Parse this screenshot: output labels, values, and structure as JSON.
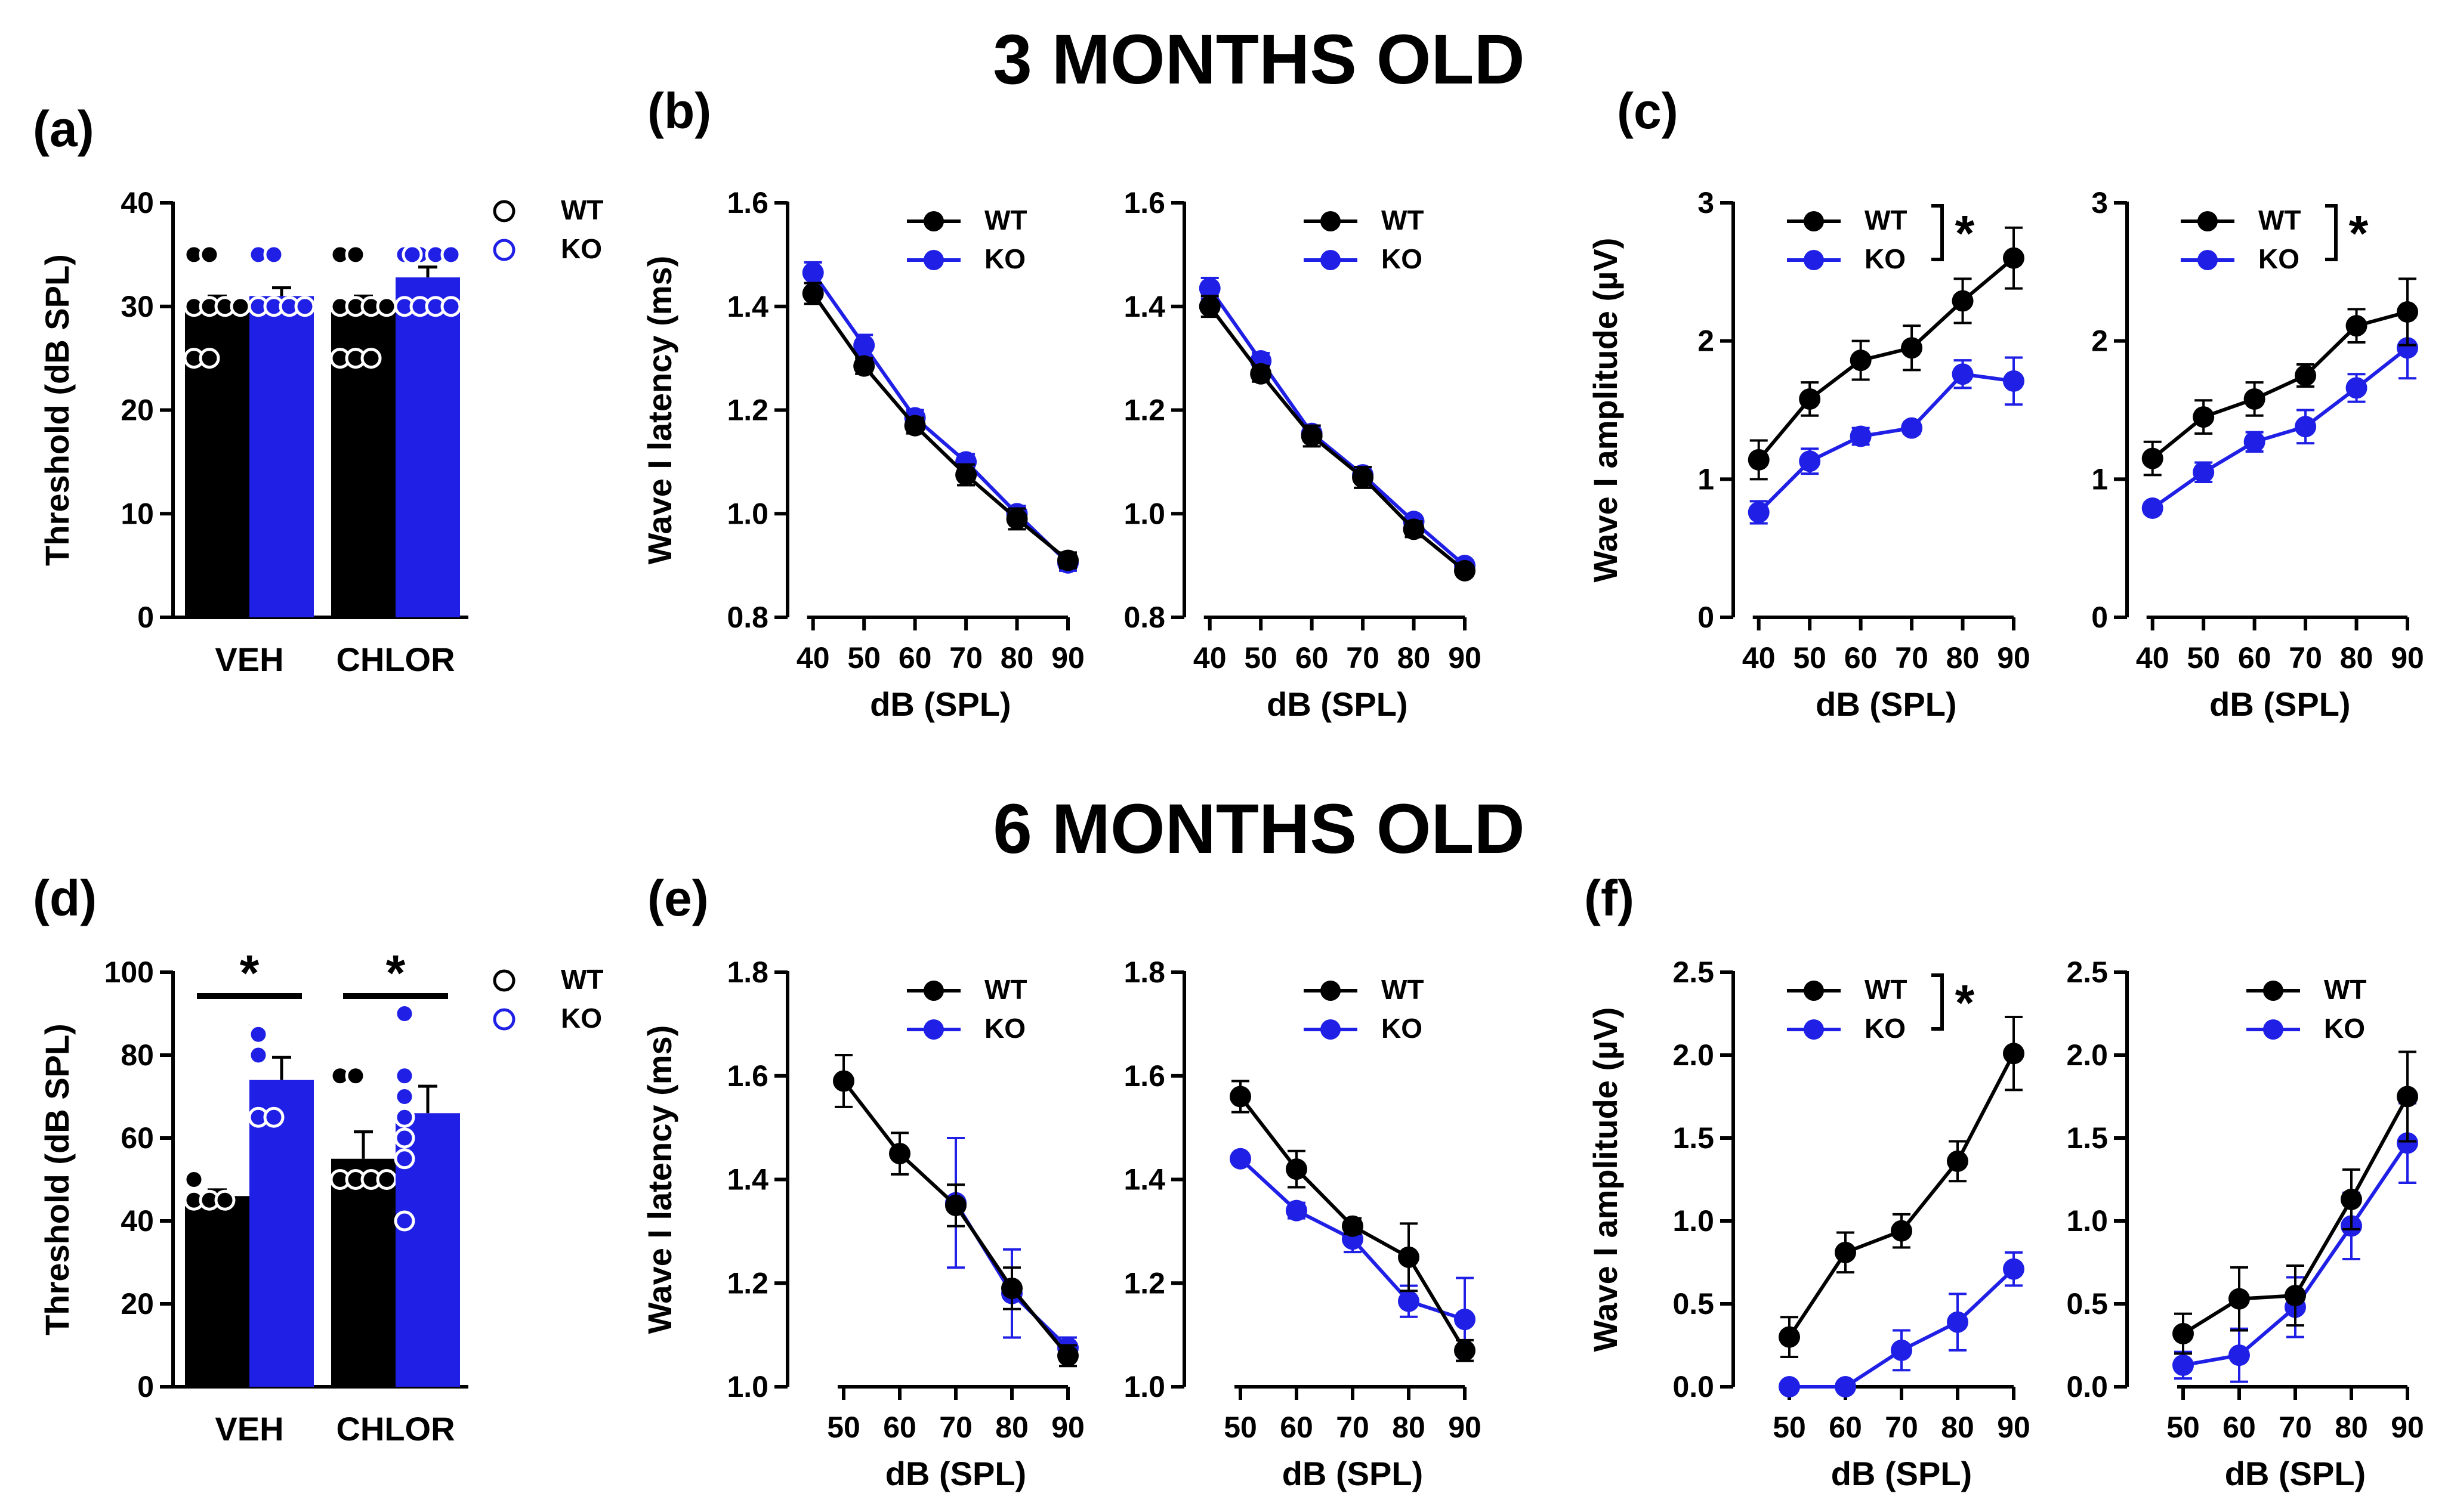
{
  "figure": {
    "titles": [
      "3 MONTHS OLD",
      "6 MONTHS OLD"
    ],
    "legend": {
      "wt": "WT",
      "ko": "KO"
    },
    "colors": {
      "wt": "#000000",
      "ko": "#1f1fe6",
      "axis": "#000000"
    },
    "significance_mark": "*"
  },
  "chart_data": [
    {
      "id": "a",
      "panel_label": "(a)",
      "type": "bar",
      "title": "3 MONTHS OLD",
      "ylabel": "Threshold (dB SPL)",
      "xlabel": "",
      "ylim": [
        0,
        40
      ],
      "yticks": [
        0,
        10,
        20,
        30,
        40
      ],
      "categories": [
        "VEH",
        "CHLOR"
      ],
      "series": [
        {
          "name": "WT",
          "values": [
            30.0,
            30.0
          ],
          "errors": [
            1.0,
            1.0
          ],
          "points": [
            [
              35,
              35,
              30,
              30,
              30,
              30,
              25,
              25
            ],
            [
              35,
              35,
              30,
              30,
              30,
              30,
              25,
              25,
              25
            ]
          ]
        },
        {
          "name": "KO",
          "values": [
            31.0,
            32.8
          ],
          "errors": [
            0.8,
            1.0
          ],
          "points": [
            [
              35,
              35,
              30,
              30,
              30,
              30
            ],
            [
              35,
              35,
              35,
              35,
              35,
              30,
              30,
              30,
              30
            ]
          ]
        }
      ],
      "significance": [],
      "legend": [
        "WT",
        "KO"
      ]
    },
    {
      "id": "b1",
      "panel_label": "(b)",
      "type": "line",
      "ylabel": "Wave I latency (ms)",
      "xlabel": "dB (SPL)",
      "ylim": [
        0.8,
        1.6
      ],
      "yticks": [
        0.8,
        1.0,
        1.2,
        1.4,
        1.6
      ],
      "ytick_labels": [
        "0.8",
        "1.0",
        "1.2",
        "1.4",
        "1.6"
      ],
      "xlim": [
        35,
        90
      ],
      "x": [
        40,
        50,
        60,
        70,
        80,
        90
      ],
      "series": [
        {
          "name": "WT",
          "values": [
            1.425,
            1.285,
            1.17,
            1.075,
            0.99,
            0.91
          ],
          "errors": [
            0.02,
            0.015,
            0.015,
            0.02,
            0.02,
            0.015
          ]
        },
        {
          "name": "KO",
          "values": [
            1.465,
            1.325,
            1.185,
            1.1,
            1.0,
            0.905
          ],
          "errors": [
            0.02,
            0.02,
            0.015,
            0.015,
            0.015,
            0.015
          ]
        }
      ],
      "legend": [
        "WT",
        "KO"
      ]
    },
    {
      "id": "b2",
      "panel_label": "",
      "type": "line",
      "ylabel": "",
      "xlabel": "dB (SPL)",
      "ylim": [
        0.8,
        1.6
      ],
      "yticks": [
        0.8,
        1.0,
        1.2,
        1.4,
        1.6
      ],
      "ytick_labels": [
        "0.8",
        "1.0",
        "1.2",
        "1.4",
        "1.6"
      ],
      "xlim": [
        35,
        90
      ],
      "x": [
        40,
        50,
        60,
        70,
        80,
        90
      ],
      "series": [
        {
          "name": "WT",
          "values": [
            1.4,
            1.27,
            1.15,
            1.07,
            0.97,
            0.89
          ],
          "errors": [
            0.02,
            0.015,
            0.02,
            0.02,
            0.015,
            0.01
          ]
        },
        {
          "name": "KO",
          "values": [
            1.435,
            1.295,
            1.155,
            1.075,
            0.985,
            0.9
          ],
          "errors": [
            0.02,
            0.015,
            0.015,
            0.015,
            0.01,
            0.01
          ]
        }
      ],
      "legend": [
        "WT",
        "KO"
      ]
    },
    {
      "id": "c1",
      "panel_label": "(c)",
      "type": "line",
      "ylabel": "Wave I amplitude (µV)",
      "xlabel": "dB (SPL)",
      "ylim": [
        0,
        3
      ],
      "yticks": [
        0,
        1,
        2,
        3
      ],
      "ytick_labels": [
        "0",
        "1",
        "2",
        "3"
      ],
      "xlim": [
        35,
        90
      ],
      "x": [
        40,
        50,
        60,
        70,
        80,
        90
      ],
      "series": [
        {
          "name": "WT",
          "values": [
            1.14,
            1.58,
            1.86,
            1.95,
            2.29,
            2.6
          ],
          "errors": [
            0.14,
            0.12,
            0.14,
            0.16,
            0.16,
            0.22
          ]
        },
        {
          "name": "KO",
          "values": [
            0.76,
            1.13,
            1.31,
            1.37,
            1.76,
            1.71
          ],
          "errors": [
            0.08,
            0.09,
            0.06,
            0.04,
            0.1,
            0.17
          ]
        }
      ],
      "significance": "*",
      "legend": [
        "WT",
        "KO"
      ]
    },
    {
      "id": "c2",
      "panel_label": "",
      "type": "line",
      "ylabel": "",
      "xlabel": "dB (SPL)",
      "ylim": [
        0,
        3
      ],
      "yticks": [
        0,
        1,
        2,
        3
      ],
      "ytick_labels": [
        "0",
        "1",
        "2",
        "3"
      ],
      "xlim": [
        35,
        90
      ],
      "x": [
        40,
        50,
        60,
        70,
        80,
        90
      ],
      "series": [
        {
          "name": "WT",
          "values": [
            1.15,
            1.45,
            1.58,
            1.75,
            2.11,
            2.21
          ],
          "errors": [
            0.12,
            0.12,
            0.12,
            0.08,
            0.12,
            0.24
          ]
        },
        {
          "name": "KO",
          "values": [
            0.79,
            1.05,
            1.27,
            1.38,
            1.66,
            1.95
          ],
          "errors": [
            0.04,
            0.07,
            0.07,
            0.12,
            0.1,
            0.22
          ]
        }
      ],
      "significance": "*",
      "legend": [
        "WT",
        "KO"
      ]
    },
    {
      "id": "d",
      "panel_label": "(d)",
      "type": "bar",
      "title": "6 MONTHS OLD",
      "ylabel": "Threshold (dB SPL)",
      "xlabel": "",
      "ylim": [
        0,
        100
      ],
      "yticks": [
        0,
        20,
        40,
        60,
        80,
        100
      ],
      "categories": [
        "VEH",
        "CHLOR"
      ],
      "series": [
        {
          "name": "WT",
          "values": [
            46,
            55
          ],
          "errors": [
            1.5,
            6.5
          ],
          "points": [
            [
              50,
              45,
              45,
              45
            ],
            [
              75,
              75,
              50,
              50,
              50,
              50
            ]
          ]
        },
        {
          "name": "KO",
          "values": [
            74,
            66
          ],
          "errors": [
            5.5,
            6.5
          ],
          "points": [
            [
              85,
              80,
              65,
              65
            ],
            [
              90,
              75,
              70,
              65,
              60,
              55,
              40
            ]
          ]
        }
      ],
      "significance": [
        "*",
        "*"
      ],
      "legend": [
        "WT",
        "KO"
      ]
    },
    {
      "id": "e1",
      "panel_label": "(e)",
      "type": "line",
      "ylabel": "Wave I latency (ms)",
      "xlabel": "dB (SPL)",
      "ylim": [
        1.0,
        1.8
      ],
      "yticks": [
        1.0,
        1.2,
        1.4,
        1.6,
        1.8
      ],
      "ytick_labels": [
        "1.0",
        "1.2",
        "1.4",
        "1.6",
        "1.8"
      ],
      "xlim": [
        40,
        90
      ],
      "x": [
        50,
        60,
        70,
        80,
        90
      ],
      "series": [
        {
          "name": "WT",
          "values": [
            1.59,
            1.45,
            1.35,
            1.19,
            1.06
          ],
          "errors": [
            0.05,
            0.04,
            0.04,
            0.04,
            0.02
          ]
        },
        {
          "name": "KO",
          "values": [
            null,
            null,
            1.355,
            1.18,
            1.075
          ],
          "errors": [
            0,
            0,
            0.125,
            0.085,
            0.02
          ]
        }
      ],
      "legend": [
        "WT",
        "KO"
      ]
    },
    {
      "id": "e2",
      "panel_label": "",
      "type": "line",
      "ylabel": "",
      "xlabel": "dB (SPL)",
      "ylim": [
        1.0,
        1.8
      ],
      "yticks": [
        1.0,
        1.2,
        1.4,
        1.6,
        1.8
      ],
      "ytick_labels": [
        "1.0",
        "1.2",
        "1.4",
        "1.6",
        "1.8"
      ],
      "xlim": [
        40,
        90
      ],
      "x": [
        50,
        60,
        70,
        80,
        90
      ],
      "series": [
        {
          "name": "WT",
          "values": [
            1.56,
            1.42,
            1.31,
            1.25,
            1.07
          ],
          "errors": [
            0.03,
            0.035,
            0.015,
            0.065,
            0.02
          ]
        },
        {
          "name": "KO",
          "values": [
            1.44,
            1.34,
            1.285,
            1.165,
            1.13
          ],
          "errors": [
            0.005,
            0.015,
            0.025,
            0.03,
            0.08
          ]
        }
      ],
      "legend": [
        "WT",
        "KO"
      ]
    },
    {
      "id": "f1",
      "panel_label": "(f)",
      "type": "line",
      "ylabel": "Wave I amplitude (µV)",
      "xlabel": "dB (SPL)",
      "ylim": [
        0,
        2.5
      ],
      "yticks": [
        0,
        0.5,
        1.0,
        1.5,
        2.0,
        2.5
      ],
      "ytick_labels": [
        "0.0",
        "0.5",
        "1.0",
        "1.5",
        "2.0",
        "2.5"
      ],
      "xlim": [
        40,
        90
      ],
      "x": [
        50,
        60,
        70,
        80,
        90
      ],
      "series": [
        {
          "name": "WT",
          "values": [
            0.3,
            0.81,
            0.94,
            1.36,
            2.01
          ],
          "errors": [
            0.12,
            0.12,
            0.1,
            0.12,
            0.22
          ]
        },
        {
          "name": "KO",
          "values": [
            0.0,
            0.0,
            0.22,
            0.39,
            0.71
          ],
          "errors": [
            0,
            0,
            0.12,
            0.17,
            0.1
          ]
        }
      ],
      "significance": "*",
      "legend": [
        "WT",
        "KO"
      ]
    },
    {
      "id": "f2",
      "panel_label": "",
      "type": "line",
      "ylabel": "",
      "xlabel": "dB (SPL)",
      "ylim": [
        0,
        2.5
      ],
      "yticks": [
        0,
        0.5,
        1.0,
        1.5,
        2.0,
        2.5
      ],
      "ytick_labels": [
        "0.0",
        "0.5",
        "1.0",
        "1.5",
        "2.0",
        "2.5"
      ],
      "xlim": [
        40,
        90
      ],
      "x": [
        50,
        60,
        70,
        80,
        90
      ],
      "series": [
        {
          "name": "WT",
          "values": [
            0.32,
            0.53,
            0.55,
            1.13,
            1.75
          ],
          "errors": [
            0.12,
            0.19,
            0.18,
            0.18,
            0.27
          ]
        },
        {
          "name": "KO",
          "values": [
            0.13,
            0.19,
            0.48,
            0.97,
            1.47
          ],
          "errors": [
            0.08,
            0.16,
            0.18,
            0.2,
            0.24
          ]
        }
      ],
      "legend": [
        "WT",
        "KO"
      ]
    }
  ]
}
